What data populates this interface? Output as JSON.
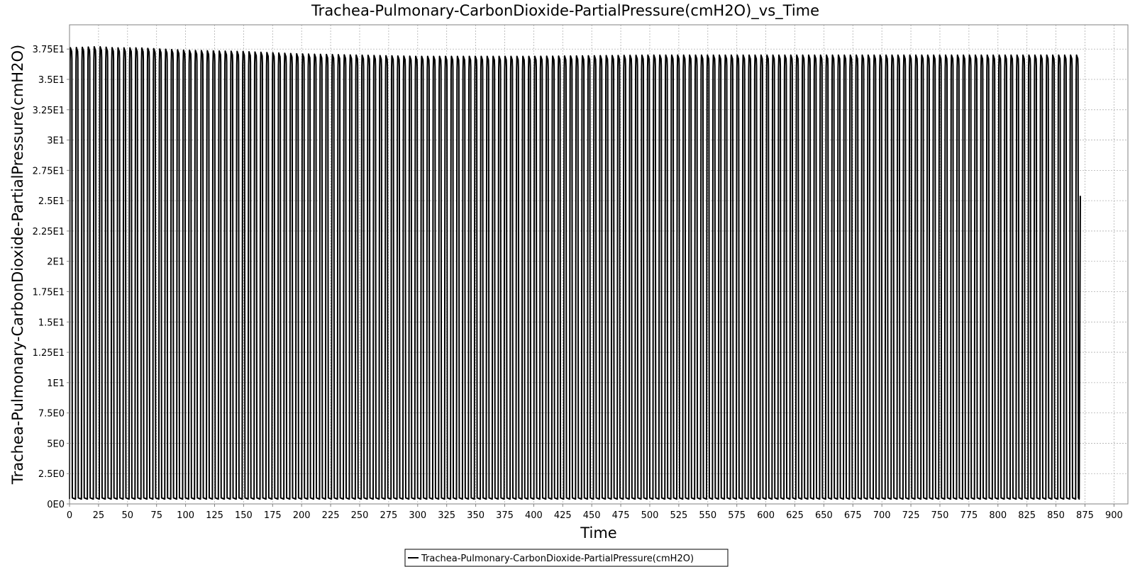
{
  "chart_data": {
    "type": "line",
    "title": "Trachea-Pulmonary-CarbonDioxide-PartialPressure(cmH2O)_vs_Time",
    "xlabel": "Time",
    "ylabel": "Trachea-Pulmonary-CarbonDioxide-PartialPressure(cmH2O)",
    "xlim": [
      0,
      912
    ],
    "ylim": [
      0,
      39.5
    ],
    "x_ticks": [
      0,
      25,
      50,
      75,
      100,
      125,
      150,
      175,
      200,
      225,
      250,
      275,
      300,
      325,
      350,
      375,
      400,
      425,
      450,
      475,
      500,
      525,
      550,
      575,
      600,
      625,
      650,
      675,
      700,
      725,
      750,
      775,
      800,
      825,
      850,
      875,
      900
    ],
    "x_tick_labels": [
      "0",
      "25",
      "50",
      "75",
      "100",
      "125",
      "150",
      "175",
      "200",
      "225",
      "250",
      "275",
      "300",
      "325",
      "350",
      "375",
      "400",
      "425",
      "450",
      "475",
      "500",
      "525",
      "550",
      "575",
      "600",
      "625",
      "650",
      "675",
      "700",
      "725",
      "750",
      "775",
      "800",
      "825",
      "850",
      "875",
      "900"
    ],
    "y_ticks": [
      0,
      2.5,
      5,
      7.5,
      10,
      12.5,
      15,
      17.5,
      20,
      22.5,
      25,
      27.5,
      30,
      32.5,
      35,
      37.5
    ],
    "y_tick_labels": [
      "0E0",
      "2.5E0",
      "5E0",
      "7.5E0",
      "1E1",
      "1.25E1",
      "1.5E1",
      "1.75E1",
      "2E1",
      "2.25E1",
      "2.5E1",
      "2.75E1",
      "3E1",
      "3.25E1",
      "3.5E1",
      "3.75E1"
    ],
    "grid": true,
    "legend_position": "bottom-center",
    "series": [
      {
        "name": "Trachea-Pulmonary-CarbonDioxide-PartialPressure(cmH2O)",
        "color": "#000000",
        "style": "oscillating",
        "x_start": 0,
        "x_end": 870,
        "breath_period": 5.13,
        "trough_value": 0.4,
        "peak_envelope": {
          "x": [
            0,
            25,
            40,
            60,
            100,
            150,
            200,
            250,
            300,
            400,
            500,
            600,
            700,
            800,
            870
          ],
          "y": [
            37.6,
            37.7,
            37.6,
            37.6,
            37.4,
            37.3,
            37.1,
            37.0,
            36.9,
            36.9,
            37.0,
            37.0,
            37.0,
            37.0,
            37.0
          ]
        },
        "end_point": {
          "x": 871,
          "y": 25.4
        }
      }
    ]
  }
}
